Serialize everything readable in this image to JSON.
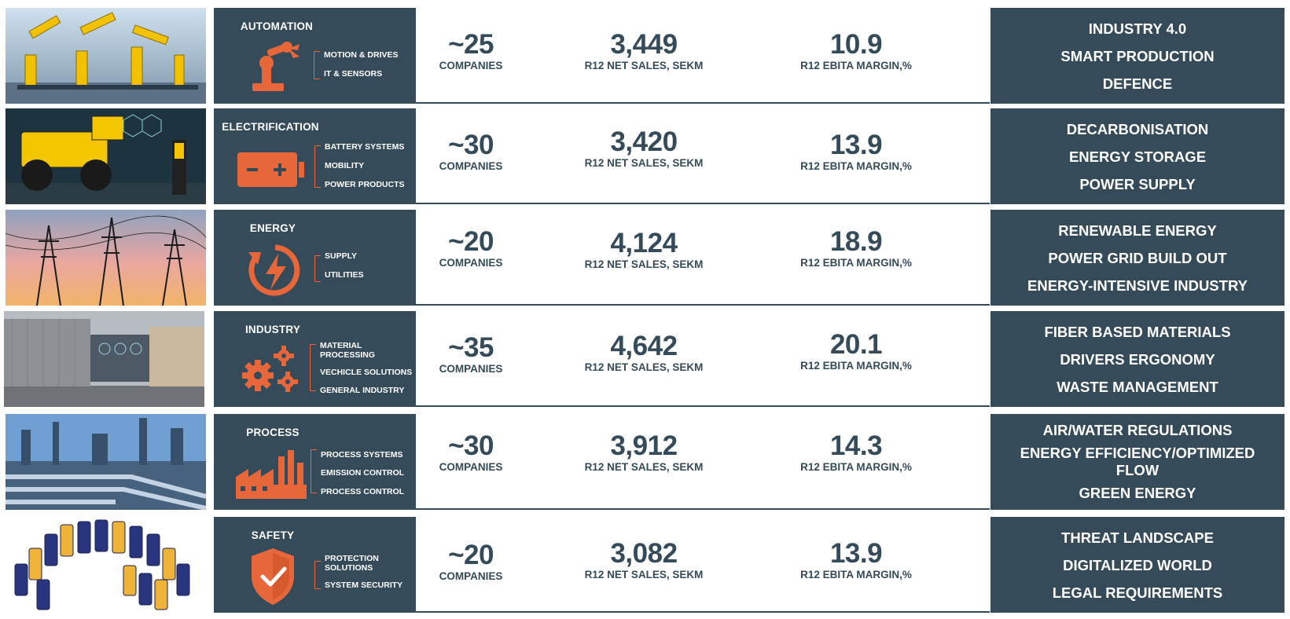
{
  "colors": {
    "panel": "#354b5a",
    "accent": "#e8673a",
    "text_light": "#ffffff"
  },
  "rows": [
    {
      "segment": "AUTOMATION",
      "icon": "robot-arm-icon",
      "subsegments": [
        "MOTION & DRIVES",
        "IT & SENSORS"
      ],
      "companies_value": "~25",
      "companies_label": "COMPANIES",
      "sales_value": "3,449",
      "sales_label": "R12 NET SALES, SEKM",
      "margin_value": "10.9",
      "margin_label": "R12 EBITA MARGIN,%",
      "trends": [
        "INDUSTRY 4.0",
        "SMART PRODUCTION",
        "DEFENCE"
      ]
    },
    {
      "segment": "ELECTRIFICATION",
      "icon": "battery-icon",
      "subsegments": [
        "BATTERY SYSTEMS",
        "MOBILITY",
        "POWER PRODUCTS"
      ],
      "companies_value": "~30",
      "companies_label": "COMPANIES",
      "sales_value": "3,420",
      "sales_label": "R12 NET SALES, SEKM",
      "margin_value": "13.9",
      "margin_label": "R12 EBITA MARGIN,%",
      "trends": [
        "DECARBONISATION",
        "ENERGY STORAGE",
        "POWER SUPPLY"
      ]
    },
    {
      "segment": "ENERGY",
      "icon": "energy-cycle-icon",
      "subsegments": [
        "SUPPLY",
        "UTILITIES"
      ],
      "companies_value": "~20",
      "companies_label": "COMPANIES",
      "sales_value": "4,124",
      "sales_label": "R12 NET SALES, SEKM",
      "margin_value": "18.9",
      "margin_label": "R12 EBITA MARGIN,%",
      "trends": [
        "RENEWABLE ENERGY",
        "POWER GRID BUILD OUT",
        "ENERGY-INTENSIVE INDUSTRY"
      ]
    },
    {
      "segment": "INDUSTRY",
      "icon": "gears-icon",
      "subsegments": [
        "MATERIAL PROCESSING",
        "VECHICLE SOLUTIONS",
        "GENERAL INDUSTRY"
      ],
      "companies_value": "~35",
      "companies_label": "COMPANIES",
      "sales_value": "4,642",
      "sales_label": "R12 NET SALES, SEKM",
      "margin_value": "20.1",
      "margin_label": "R12 EBITA MARGIN,%",
      "trends": [
        "FIBER BASED MATERIALS",
        "DRIVERS ERGONOMY",
        "WASTE MANAGEMENT"
      ]
    },
    {
      "segment": "PROCESS",
      "icon": "factory-icon",
      "subsegments": [
        "PROCESS SYSTEMS",
        "EMISSION CONTROL",
        "PROCESS CONTROL"
      ],
      "companies_value": "~30",
      "companies_label": "COMPANIES",
      "sales_value": "3,912",
      "sales_label": "R12 NET SALES, SEKM",
      "margin_value": "14.3",
      "margin_label": "R12 EBITA MARGIN,%",
      "trends": [
        "AIR/WATER REGULATIONS",
        "ENERGY EFFICIENCY/OPTIMIZED FLOW",
        "GREEN ENERGY"
      ]
    },
    {
      "segment": "SAFETY",
      "icon": "shield-check-icon",
      "subsegments": [
        "PROTECTION SOLUTIONS",
        "SYSTEM SECURITY"
      ],
      "companies_value": "~20",
      "companies_label": "COMPANIES",
      "sales_value": "3,082",
      "sales_label": "R12 NET SALES, SEKM",
      "margin_value": "13.9",
      "margin_label": "R12 EBITA MARGIN,%",
      "trends": [
        "THREAT LANDSCAPE",
        "DIGITALIZED WORLD",
        "LEGAL REQUIREMENTS"
      ]
    }
  ]
}
